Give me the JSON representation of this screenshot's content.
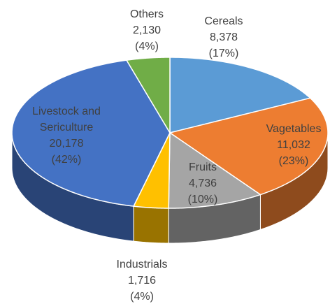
{
  "chart_data": {
    "type": "pie3d",
    "categories": [
      "Cereals",
      "Vagetables",
      "Fruits",
      "Industrials",
      "Livestock and Sericulture",
      "Others"
    ],
    "values": [
      8378,
      11032,
      4736,
      1716,
      20178,
      2130
    ],
    "value_labels": [
      "8,378",
      "11,032",
      "4,736",
      "1,716",
      "20,178",
      "2,130"
    ],
    "percent_labels": [
      "(17%)",
      "(23%)",
      "(10%)",
      "(4%)",
      "(42%)",
      "(4%)"
    ],
    "colors": [
      "#5b9bd5",
      "#ed7d31",
      "#a5a5a5",
      "#ffc000",
      "#4472c4",
      "#70ad47"
    ]
  }
}
